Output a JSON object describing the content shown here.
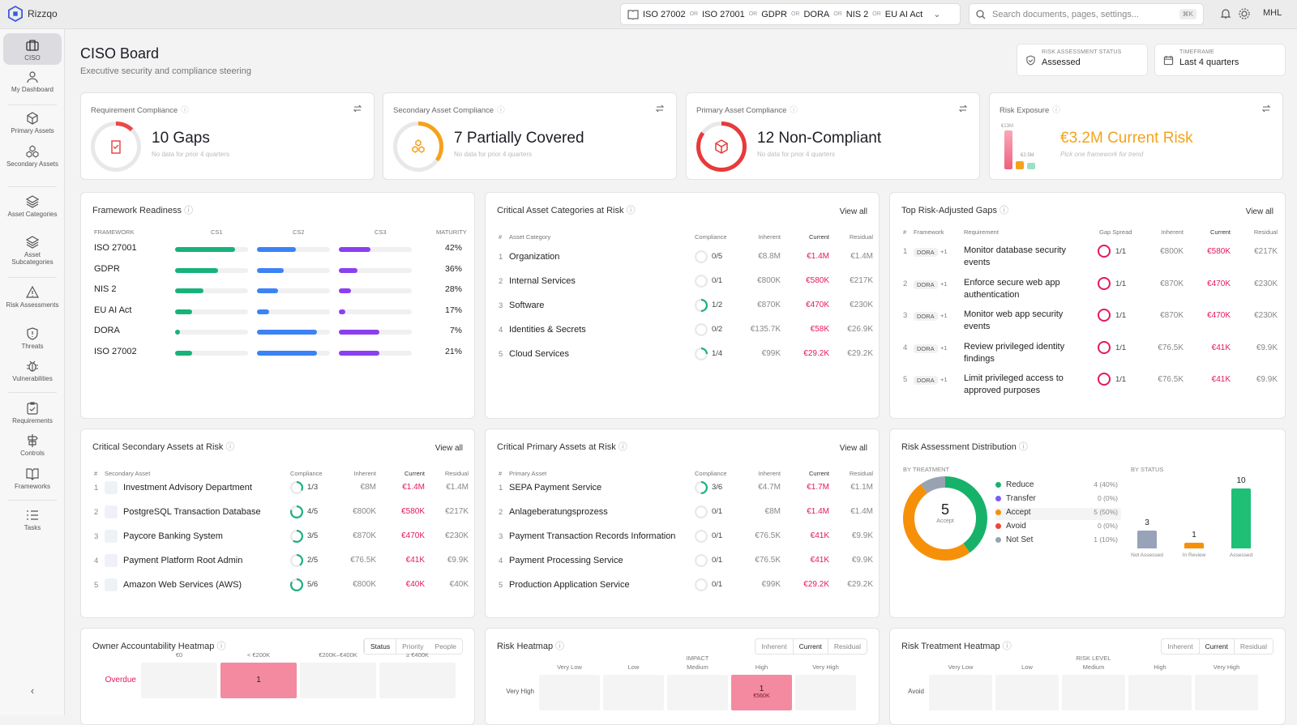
{
  "app": {
    "name": "Rizzqo",
    "user": "MHL"
  },
  "frameworks": {
    "items": [
      "ISO 27002",
      "ISO 27001",
      "GDPR",
      "DORA",
      "NIS 2",
      "EU AI Act"
    ],
    "or": "OR"
  },
  "search": {
    "placeholder": "Search documents, pages, settings...",
    "shortcut": "⌘K"
  },
  "sidebar": {
    "items": [
      {
        "label": "CISO"
      },
      {
        "label": "My Dashboard"
      },
      {
        "label": "Primary Assets"
      },
      {
        "label": "Secondary Assets"
      },
      {
        "label": "Asset Categories"
      },
      {
        "label": "Asset Subcategories"
      },
      {
        "label": "Risk Assessments"
      },
      {
        "label": "Threats"
      },
      {
        "label": "Vulnerabilities"
      },
      {
        "label": "Requirements"
      },
      {
        "label": "Controls"
      },
      {
        "label": "Frameworks"
      },
      {
        "label": "Tasks"
      }
    ],
    "collapse": "‹"
  },
  "header": {
    "title": "CISO Board",
    "subtitle": "Executive security and compliance steering",
    "risk_status": {
      "label": "RISK ASSESSMENT STATUS",
      "value": "Assessed"
    },
    "timeframe": {
      "label": "TIMEFRAME",
      "value": "Last 4 quarters"
    }
  },
  "kpis": [
    {
      "title": "Requirement Compliance",
      "value": "10 Gaps",
      "sub": "No data for prior 4 quarters",
      "color": "#e84a4a",
      "fraction": 0.12
    },
    {
      "title": "Secondary Asset Compliance",
      "value": "7 Partially Covered",
      "sub": "No data for prior 4 quarters",
      "color": "#f5a21b",
      "fraction": 0.35
    },
    {
      "title": "Primary Asset Compliance",
      "value": "12 Non-Compliant",
      "sub": "No data for prior 4 quarters",
      "color": "#e83a3a",
      "fraction": 0.85
    },
    {
      "title": "Risk Exposure",
      "value": "€3.2M Current Risk",
      "sub": "Pick one framework for trend",
      "bar_labels": [
        "€13M",
        "€2.5M"
      ]
    }
  ],
  "readiness": {
    "title": "Framework Readiness",
    "headers": [
      "FRAMEWORK",
      "CS1",
      "CS2",
      "CS3",
      "MATURITY"
    ],
    "rows": [
      {
        "name": "ISO 27001",
        "cs1": 0.95,
        "cs2": 0.62,
        "cs3": 0.5,
        "maturity": "42%"
      },
      {
        "name": "GDPR",
        "cs1": 0.68,
        "cs2": 0.43,
        "cs3": 0.3,
        "maturity": "36%"
      },
      {
        "name": "NIS 2",
        "cs1": 0.45,
        "cs2": 0.33,
        "cs3": 0.2,
        "maturity": "28%"
      },
      {
        "name": "EU AI Act",
        "cs1": 0.27,
        "cs2": 0.2,
        "cs3": 0.1,
        "maturity": "17%"
      },
      {
        "name": "DORA",
        "cs1": 0.07,
        "cs2": 0.95,
        "cs3": 0.65,
        "maturity": "7%"
      },
      {
        "name": "ISO 27002",
        "cs1": 0.27,
        "cs2": 0.95,
        "cs3": 0.65,
        "maturity": "21%"
      }
    ]
  },
  "asset_categories": {
    "title": "Critical Asset Categories at Risk",
    "view_all": "View all",
    "headers": [
      "#",
      "Asset Category",
      "Compliance",
      "Inherent",
      "Current",
      "Residual"
    ],
    "rows": [
      {
        "n": "1",
        "name": "Organization",
        "comp": "0/5",
        "frac": 0,
        "inh": "€8.8M",
        "cur": "€1.4M",
        "res": "€1.4M"
      },
      {
        "n": "2",
        "name": "Internal Services",
        "comp": "0/1",
        "frac": 0,
        "inh": "€800K",
        "cur": "€580K",
        "res": "€217K"
      },
      {
        "n": "3",
        "name": "Software",
        "comp": "1/2",
        "frac": 0.5,
        "inh": "€870K",
        "cur": "€470K",
        "res": "€230K"
      },
      {
        "n": "4",
        "name": "Identities & Secrets",
        "comp": "0/2",
        "frac": 0,
        "inh": "€135.7K",
        "cur": "€58K",
        "res": "€26.9K"
      },
      {
        "n": "5",
        "name": "Cloud Services",
        "comp": "1/4",
        "frac": 0.25,
        "inh": "€99K",
        "cur": "€29.2K",
        "res": "€29.2K"
      }
    ]
  },
  "gaps": {
    "title": "Top Risk-Adjusted Gaps",
    "view_all": "View all",
    "headers": [
      "#",
      "Framework",
      "Requirement",
      "Gap Spread",
      "Inherent",
      "Current",
      "Residual"
    ],
    "rows": [
      {
        "n": "1",
        "fw": "DORA",
        "plus": "+1",
        "req": [
          "Monitor database security",
          "events"
        ],
        "gap": "1/1",
        "inh": "€800K",
        "cur": "€580K",
        "res": "€217K"
      },
      {
        "n": "2",
        "fw": "DORA",
        "plus": "+1",
        "req": [
          "Enforce secure web app",
          "authentication"
        ],
        "gap": "1/1",
        "inh": "€870K",
        "cur": "€470K",
        "res": "€230K"
      },
      {
        "n": "3",
        "fw": "DORA",
        "plus": "+1",
        "req": [
          "Monitor web app security",
          "events"
        ],
        "gap": "1/1",
        "inh": "€870K",
        "cur": "€470K",
        "res": "€230K"
      },
      {
        "n": "4",
        "fw": "DORA",
        "plus": "+1",
        "req": [
          "Review privileged identity",
          "findings"
        ],
        "gap": "1/1",
        "inh": "€76.5K",
        "cur": "€41K",
        "res": "€9.9K"
      },
      {
        "n": "5",
        "fw": "DORA",
        "plus": "+1",
        "req": [
          "Limit privileged access to",
          "approved purposes"
        ],
        "gap": "1/1",
        "inh": "€76.5K",
        "cur": "€41K",
        "res": "€9.9K"
      }
    ]
  },
  "secondary_assets": {
    "title": "Critical Secondary Assets at Risk",
    "view_all": "View all",
    "headers": [
      "#",
      "Secondary Asset",
      "Compliance",
      "Inherent",
      "Current",
      "Residual"
    ],
    "rows": [
      {
        "n": "1",
        "name": "Investment Advisory Department",
        "comp": "1/3",
        "frac": 0.33,
        "inh": "€8M",
        "cur": "€1.4M",
        "res": "€1.4M",
        "icon": "dash-icon"
      },
      {
        "n": "2",
        "name": "PostgreSQL Transaction Database",
        "comp": "4/5",
        "frac": 0.8,
        "inh": "€800K",
        "cur": "€580K",
        "res": "€217K",
        "icon": "postgres-icon"
      },
      {
        "n": "3",
        "name": "Paycore Banking System",
        "comp": "3/5",
        "frac": 0.6,
        "inh": "€870K",
        "cur": "€470K",
        "res": "€230K",
        "icon": "dash-icon"
      },
      {
        "n": "4",
        "name": "Payment Platform Root Admin",
        "comp": "2/5",
        "frac": 0.4,
        "inh": "€76.5K",
        "cur": "€41K",
        "res": "€9.9K",
        "icon": "admin-icon"
      },
      {
        "n": "5",
        "name": "Amazon Web Services (AWS)",
        "comp": "5/6",
        "frac": 0.83,
        "inh": "€800K",
        "cur": "€40K",
        "res": "€40K",
        "icon": "aws-icon"
      }
    ]
  },
  "primary_assets": {
    "title": "Critical Primary Assets at Risk",
    "view_all": "View all",
    "headers": [
      "#",
      "Primary Asset",
      "Compliance",
      "Inherent",
      "Current",
      "Residual"
    ],
    "rows": [
      {
        "n": "1",
        "name": "SEPA Payment Service",
        "comp": "3/6",
        "frac": 0.5,
        "inh": "€4.7M",
        "cur": "€1.7M",
        "res": "€1.1M"
      },
      {
        "n": "2",
        "name": "Anlageberatungsprozess",
        "comp": "0/1",
        "frac": 0,
        "inh": "€8M",
        "cur": "€1.4M",
        "res": "€1.4M"
      },
      {
        "n": "3",
        "name": "Payment Transaction Records Information",
        "comp": "0/1",
        "frac": 0,
        "inh": "€76.5K",
        "cur": "€41K",
        "res": "€9.9K"
      },
      {
        "n": "4",
        "name": "Payment Processing Service",
        "comp": "0/1",
        "frac": 0,
        "inh": "€76.5K",
        "cur": "€41K",
        "res": "€9.9K"
      },
      {
        "n": "5",
        "name": "Production Application Service",
        "comp": "0/1",
        "frac": 0,
        "inh": "€99K",
        "cur": "€29.2K",
        "res": "€29.2K"
      }
    ]
  },
  "distribution": {
    "title": "Risk Assessment Distribution",
    "by_treatment": "BY TREATMENT",
    "by_status": "BY STATUS",
    "donut_value": "5",
    "donut_label": "Accept",
    "legend": [
      {
        "label": "Reduce",
        "value": "4 (40%)",
        "color": "#17b26a"
      },
      {
        "label": "Transfer",
        "value": "0 (0%)",
        "color": "#7a5af8"
      },
      {
        "label": "Accept",
        "value": "5 (50%)",
        "color": "#f79009"
      },
      {
        "label": "Avoid",
        "value": "0 (0%)",
        "color": "#f04438"
      },
      {
        "label": "Not Set",
        "value": "1 (10%)",
        "color": "#98a2b3"
      }
    ],
    "status": [
      {
        "label": "Not Assessed",
        "value": 3,
        "color": "#98a2b8"
      },
      {
        "label": "In Review",
        "value": 1,
        "color": "#f79009"
      },
      {
        "label": "Assessed",
        "value": 10,
        "color": "#1fbf75"
      }
    ]
  },
  "owner_heatmap": {
    "title": "Owner Accountability Heatmap",
    "tabs": [
      "Status",
      "Priority",
      "People"
    ],
    "cols": [
      "€0",
      "< €200K",
      "€200K–€400K",
      "≥ €400K"
    ],
    "row_label": "Overdue",
    "cell_value": "1"
  },
  "risk_heatmap": {
    "title": "Risk Heatmap",
    "tabs": [
      "Inherent",
      "Current",
      "Residual"
    ],
    "axis": "IMPACT",
    "cols": [
      "Very Low",
      "Low",
      "Medium",
      "High",
      "Very High"
    ],
    "row_label": "Very High",
    "cell_value": "1",
    "cell_amount": "€560K"
  },
  "treatment_heatmap": {
    "title": "Risk Treatment Heatmap",
    "tabs": [
      "Inherent",
      "Current",
      "Residual"
    ],
    "axis": "RISK LEVEL",
    "cols": [
      "Very Low",
      "Low",
      "Medium",
      "High",
      "Very High"
    ],
    "row_label": "Avoid"
  }
}
